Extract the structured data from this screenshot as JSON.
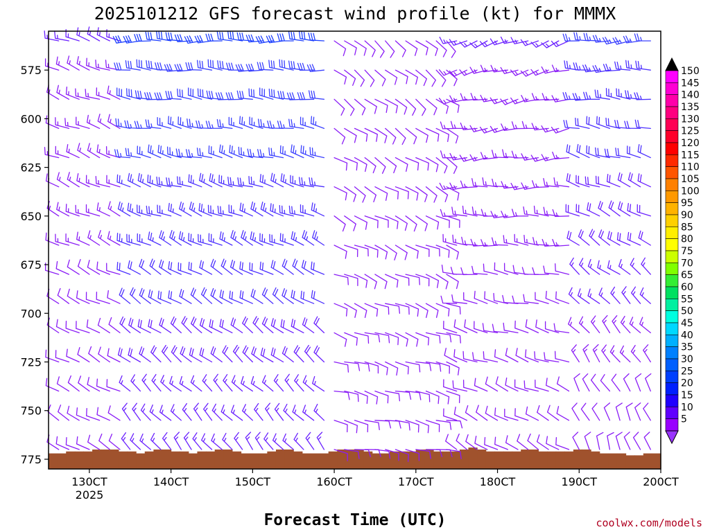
{
  "chart_data": {
    "type": "wind-barb-profile",
    "title": "2025101212 GFS forecast wind profile (kt) for MMMX",
    "xlabel": "Forecast Time (UTC)",
    "x_ticks": [
      "130CT",
      "140CT",
      "150CT",
      "160CT",
      "170CT",
      "180CT",
      "190CT",
      "200CT"
    ],
    "x_year": "2025",
    "y_ticks": [
      "575",
      "600",
      "625",
      "650",
      "675",
      "700",
      "725",
      "750",
      "775"
    ],
    "y_values": [
      575,
      600,
      625,
      650,
      675,
      700,
      725,
      750,
      775
    ],
    "ylim": [
      555,
      780
    ],
    "levels_hpa": [
      560,
      575,
      590,
      605,
      620,
      635,
      650,
      665,
      680,
      695,
      710,
      725,
      740,
      755,
      770
    ],
    "time_range_days": [
      12.5,
      20.0
    ],
    "time_step_hours": 3,
    "wind_periods": [
      {
        "start_day": 12.5,
        "end_day": 13.5,
        "low_dir": 300,
        "low_spd": 10,
        "high_dir": 290,
        "high_spd": 15
      },
      {
        "start_day": 13.5,
        "end_day": 16.0,
        "low_dir": 320,
        "low_spd": 15,
        "high_dir": 270,
        "high_spd": 30
      },
      {
        "start_day": 16.0,
        "end_day": 17.5,
        "low_dir": 100,
        "low_spd": 10,
        "high_dir": 130,
        "high_spd": 10
      },
      {
        "start_day": 17.5,
        "end_day": 19.0,
        "low_dir": 300,
        "low_spd": 10,
        "high_dir": 250,
        "high_spd": 15
      },
      {
        "start_day": 19.0,
        "end_day": 20.0,
        "low_dir": 340,
        "low_spd": 10,
        "high_dir": 265,
        "high_spd": 25
      }
    ],
    "terrain_hpa": [
      772,
      772,
      771,
      771,
      771,
      770,
      770,
      770,
      771,
      771,
      772,
      771,
      770,
      770,
      771,
      771,
      772,
      771,
      771,
      770,
      770,
      771,
      772,
      772,
      772,
      771,
      770,
      770,
      771,
      772,
      772,
      772,
      771,
      770,
      770,
      770,
      771,
      772,
      772,
      771,
      771,
      771,
      770,
      770,
      771,
      771,
      771,
      770,
      769,
      770,
      771,
      771,
      771,
      771,
      770,
      770,
      771,
      771,
      771,
      771,
      770,
      770,
      771,
      772,
      772,
      772,
      773,
      773,
      772,
      772
    ],
    "colorbar": {
      "labels": [
        "150",
        "145",
        "140",
        "135",
        "130",
        "125",
        "120",
        "115",
        "110",
        "105",
        "100",
        "95",
        "90",
        "85",
        "80",
        "75",
        "70",
        "65",
        "60",
        "55",
        "50",
        "45",
        "40",
        "35",
        "30",
        "25",
        "20",
        "15",
        "10",
        "5"
      ],
      "colors": [
        "#ff00ff",
        "#ff00d4",
        "#ff00aa",
        "#ff0080",
        "#ff0055",
        "#ff002a",
        "#ff0000",
        "#ff2a00",
        "#ff5500",
        "#ff8000",
        "#ff9900",
        "#ffb300",
        "#ffd000",
        "#ffee00",
        "#ffff00",
        "#ccff00",
        "#80ff00",
        "#33ee33",
        "#00e060",
        "#00f0a0",
        "#00ffe0",
        "#00d8ff",
        "#00b0ff",
        "#0080ff",
        "#0060ff",
        "#0040ff",
        "#0020ff",
        "#2000ff",
        "#6000ff",
        "#9900ff"
      ],
      "top_triangle_color": "#000000",
      "bottom_triangle_color": "#9933ff"
    },
    "terrain_color": "#a0522d",
    "credit": "coolwx.com/models"
  }
}
